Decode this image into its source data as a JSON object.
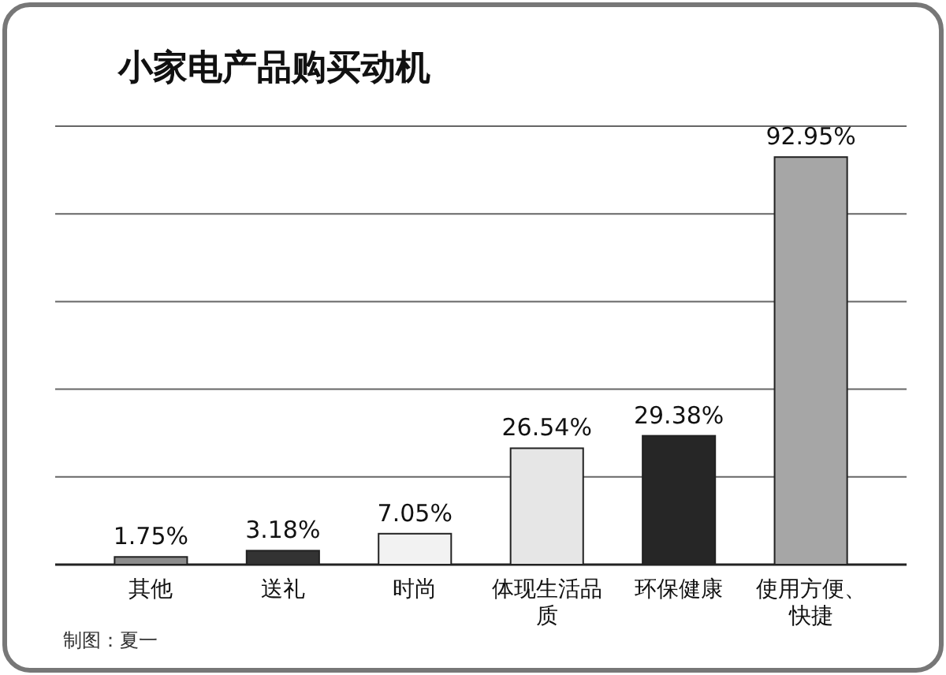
{
  "chart_data": {
    "type": "bar",
    "title": "小家电产品购买动机",
    "categories": [
      "其他",
      "送礼",
      "时尚",
      "体现生活品质",
      "环保健康",
      "使用方便、快捷"
    ],
    "values": [
      1.75,
      3.18,
      7.05,
      26.54,
      29.38,
      92.95
    ],
    "colors": [
      "#8c8c8c",
      "#333333",
      "#f2f2f2",
      "#e6e6e6",
      "#262626",
      "#a6a6a6"
    ],
    "value_labels": [
      "1.75%",
      "3.18%",
      "7.05%",
      "26.54%",
      "29.38%",
      "92.95%"
    ],
    "ylim": [
      0,
      100
    ],
    "yticks": [
      {
        "value": 0,
        "label": null
      },
      {
        "value": 20,
        "label": null
      },
      {
        "value": 40,
        "label": null
      },
      {
        "value": 60,
        "label": null
      },
      {
        "value": 80,
        "label": null
      },
      {
        "value": 100,
        "label": null
      }
    ],
    "grid": "y",
    "tick_labels": "x",
    "annotations": [
      "制图：夏一"
    ]
  }
}
